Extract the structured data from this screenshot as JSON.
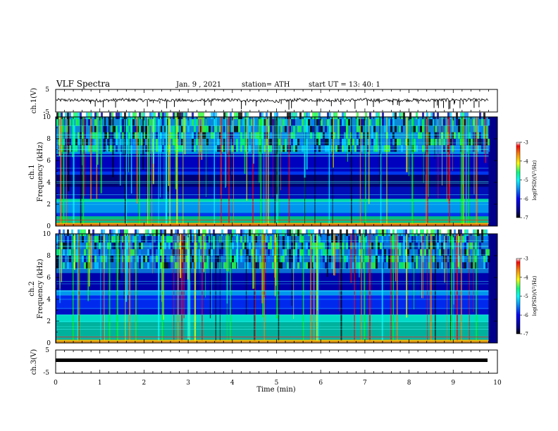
{
  "header": {
    "title": "VLF Spectra",
    "date": "Jan. 9 , 2021",
    "station": "station= ATH",
    "start_time": "start  UT =  13: 40: 1"
  },
  "colors": {
    "axis": "#000000",
    "background": "#ffffff",
    "colormap": [
      "#000000",
      "#000080",
      "#0000ff",
      "#00a0ff",
      "#00ffff",
      "#00ff80",
      "#ffff00",
      "#ff8000",
      "#ff0000",
      "#ffffff"
    ]
  },
  "chart_data": [
    {
      "type": "line",
      "name": "ch1-voltage",
      "ylabel": "ch.1(V)",
      "ylim": [
        -5,
        5
      ],
      "yticks": [
        "5",
        "-5"
      ],
      "xlim": [
        0,
        10
      ],
      "baseline": 0,
      "x": [
        0,
        0.5,
        1,
        1.5,
        2,
        2.5,
        3,
        3.5,
        4,
        4.5,
        5,
        5.5,
        6,
        6.5,
        7,
        7.5,
        8,
        8.5,
        9,
        9.5,
        9.8
      ],
      "y": [
        0.3,
        0.2,
        0.1,
        0.4,
        0.2,
        0.3,
        0.1,
        0.2,
        0.3,
        0.1,
        -0.2,
        0.4,
        0.3,
        0.2,
        0.4,
        0.1,
        0.3,
        0.2,
        0.4,
        0.3,
        0.2
      ]
    },
    {
      "type": "heatmap",
      "name": "ch1-spectrogram",
      "ylabel": "ch.1\nFrequency (kHz)",
      "ylim": [
        0,
        10
      ],
      "yticks": [
        "0",
        "2",
        "4",
        "6",
        "8",
        "10"
      ],
      "xlim": [
        0,
        10
      ],
      "colorbar": {
        "label": "log(PSD)(V²/Hz)",
        "range": [
          -7,
          -3
        ],
        "ticks": [
          "-3",
          "-4",
          "-5",
          "-6",
          "-7"
        ]
      }
    },
    {
      "type": "heatmap",
      "name": "ch2-spectrogram",
      "ylabel": "ch.2\nFrequency (kHz)",
      "ylim": [
        0,
        10
      ],
      "yticks": [
        "0",
        "2",
        "4",
        "6",
        "8",
        "10"
      ],
      "xlim": [
        0,
        10
      ],
      "colorbar": {
        "label": "log(PSD)(V²/Hz)",
        "range": [
          -7,
          -3
        ],
        "ticks": [
          "-3",
          "-4",
          "-5",
          "-6",
          "-7"
        ]
      }
    },
    {
      "type": "line",
      "name": "ch3-voltage",
      "ylabel": "ch.3(V)",
      "ylim": [
        -5,
        5
      ],
      "yticks": [
        "5",
        "-5"
      ],
      "xlim": [
        0,
        10
      ],
      "x": [
        0,
        9.8
      ],
      "y": [
        0,
        0
      ],
      "xlabel": "Time  (min)",
      "xticks": [
        "0",
        "1",
        "2",
        "3",
        "4",
        "5",
        "6",
        "7",
        "8",
        "9",
        "10"
      ]
    }
  ]
}
